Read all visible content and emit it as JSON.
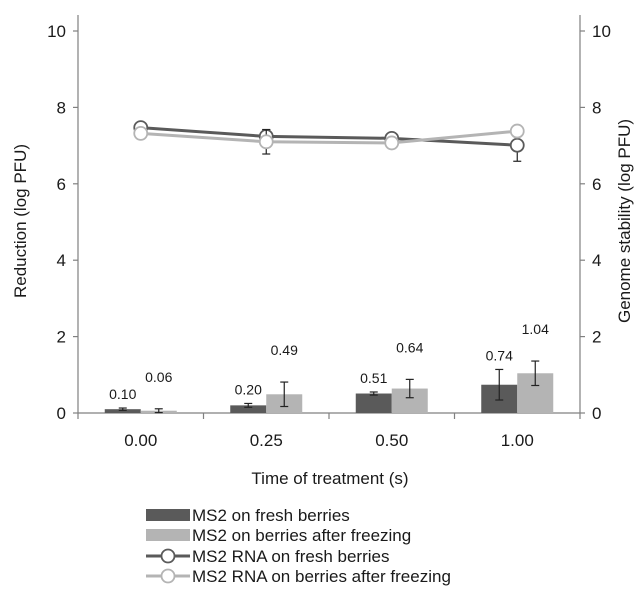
{
  "chart_data": {
    "type": "bar+line",
    "categories": [
      "0.00",
      "0.25",
      "0.50",
      "1.00"
    ],
    "xlabel": "Time of treatment (s)",
    "ylabel_left": "Reduction (log PFU)",
    "ylabel_right": "Genome stability (log PFU)",
    "ylim_left": [
      0,
      10
    ],
    "ylim_right": [
      0,
      10
    ],
    "yticks": [
      "0",
      "2",
      "4",
      "6",
      "8",
      "10"
    ],
    "grid": false,
    "bar_series": [
      {
        "name": "MS2 on fresh berries",
        "color": "#5a5a5a",
        "values": [
          0.1,
          0.2,
          0.51,
          0.74
        ],
        "labels": [
          "0.10",
          "0.20",
          "0.51",
          "0.74"
        ],
        "errors": [
          0.03,
          0.05,
          0.04,
          0.4
        ]
      },
      {
        "name": "MS2 on berries after freezing",
        "color": "#b4b4b4",
        "values": [
          0.06,
          0.49,
          0.64,
          1.04
        ],
        "labels": [
          "0.06",
          "0.49",
          "0.64",
          "1.04"
        ],
        "errors": [
          0.05,
          0.32,
          0.24,
          0.32
        ]
      }
    ],
    "line_series": [
      {
        "name": "MS2 RNA on fresh berries",
        "color": "#5a5a5a",
        "marker": "open-circle",
        "values": [
          7.47,
          7.24,
          7.19,
          7.01
        ],
        "errors": [
          0.0,
          0.18,
          0.12,
          0.42
        ]
      },
      {
        "name": "MS2 RNA on berries after freezing",
        "color": "#b4b4b4",
        "marker": "open-circle",
        "values": [
          7.32,
          7.1,
          7.07,
          7.38
        ],
        "errors": [
          0.0,
          0.32,
          0.05,
          0.12
        ]
      }
    ],
    "legend": "bottom"
  }
}
